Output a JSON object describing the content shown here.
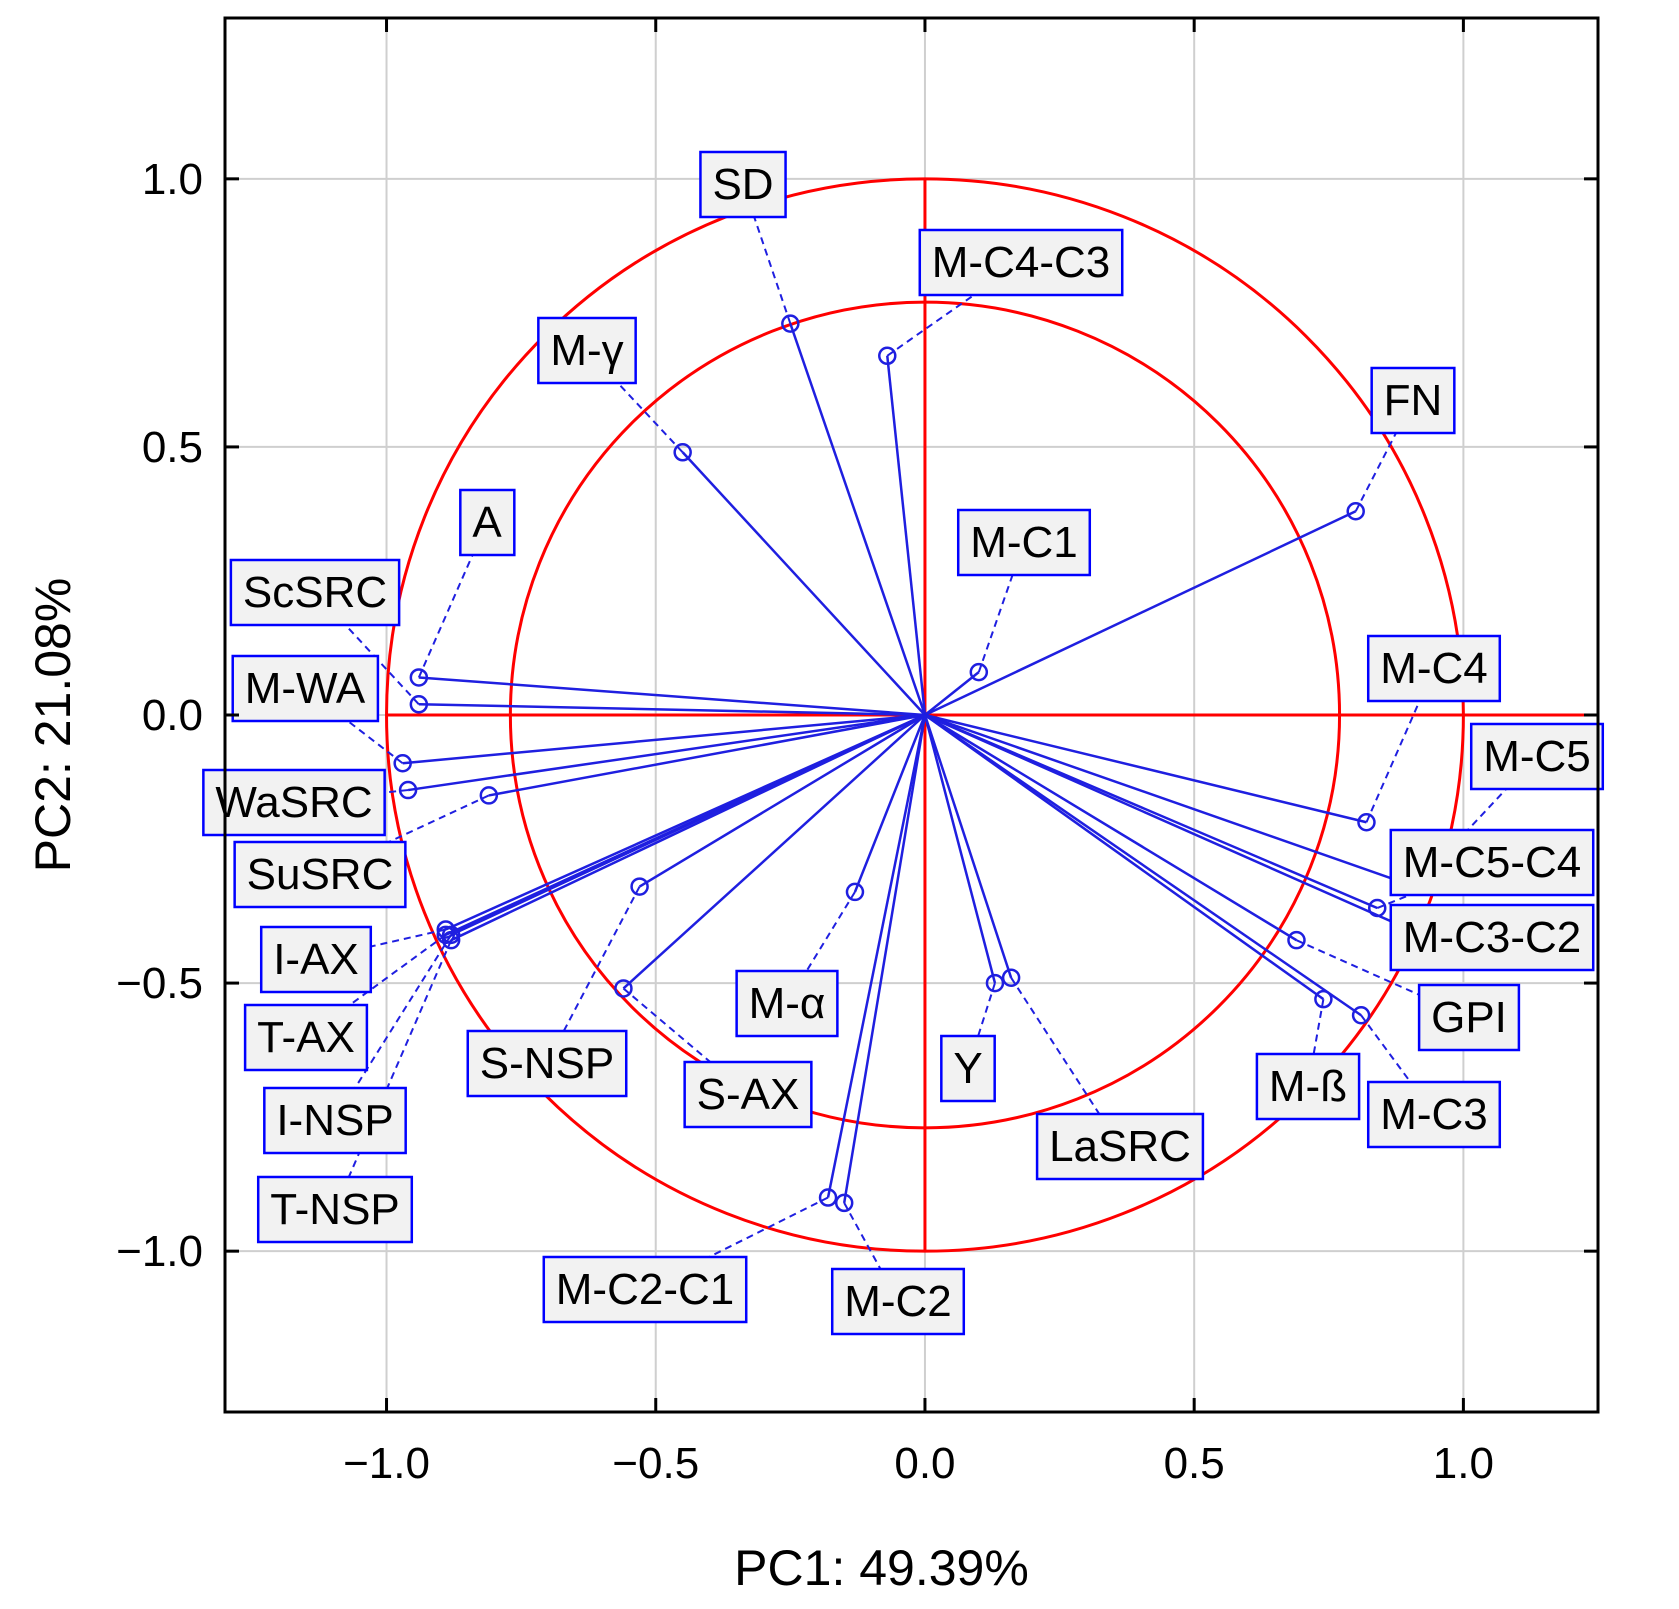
{
  "colors": {
    "vector": "#1f1fe0",
    "circle": "#ff0000",
    "grid": "#cfcfcf",
    "frame": "#000000",
    "label_fill": "#f2f2f2",
    "label_border": "#0000ff"
  },
  "chart_data": {
    "type": "scatter",
    "subtype": "pca-correlation-circle",
    "xlabel": "PC1: 49.39%",
    "ylabel": "PC2: 21.08%",
    "xlim": [
      -1.3,
      1.25
    ],
    "ylim": [
      -1.3,
      1.3
    ],
    "x_ticks": [
      -1.0,
      -0.5,
      0.0,
      0.5,
      1.0
    ],
    "x_tick_labels": [
      "−1.0",
      "−0.5",
      "0.0",
      "0.5",
      "1.0"
    ],
    "y_ticks": [
      -1.0,
      -0.5,
      0.0,
      0.5,
      1.0
    ],
    "y_tick_labels": [
      "−1.0",
      "−0.5",
      "0.0",
      "0.5",
      "1.0"
    ],
    "grid": true,
    "circles": [
      {
        "name": "unit circle",
        "radius": 1.0
      },
      {
        "name": "inner circle",
        "radius": 0.77
      }
    ],
    "variables": [
      {
        "name": "SD",
        "x": -0.25,
        "y": 0.73
      },
      {
        "name": "M-C4-C3",
        "x": -0.07,
        "y": 0.67
      },
      {
        "name": "M-γ",
        "x": -0.45,
        "y": 0.49
      },
      {
        "name": "FN",
        "x": 0.8,
        "y": 0.38
      },
      {
        "name": "A",
        "x": -0.94,
        "y": 0.07
      },
      {
        "name": "ScSRC",
        "x": -0.94,
        "y": 0.02
      },
      {
        "name": "M-C1",
        "x": 0.1,
        "y": 0.08
      },
      {
        "name": "M-WA",
        "x": -0.97,
        "y": -0.09
      },
      {
        "name": "WaSRC",
        "x": -0.96,
        "y": -0.14
      },
      {
        "name": "SuSRC",
        "x": -0.81,
        "y": -0.15
      },
      {
        "name": "M-C4",
        "x": 0.82,
        "y": -0.2
      },
      {
        "name": "M-C5",
        "x": 0.91,
        "y": -0.32
      },
      {
        "name": "M-C5-C4",
        "x": 0.84,
        "y": -0.36
      },
      {
        "name": "M-C3-C2",
        "x": 0.9,
        "y": -0.4
      },
      {
        "name": "GPI",
        "x": 0.69,
        "y": -0.42
      },
      {
        "name": "M-ß",
        "x": 0.74,
        "y": -0.53
      },
      {
        "name": "M-C3",
        "x": 0.81,
        "y": -0.56
      },
      {
        "name": "I-AX",
        "x": -0.89,
        "y": -0.4
      },
      {
        "name": "T-AX",
        "x": -0.89,
        "y": -0.41
      },
      {
        "name": "I-NSP",
        "x": -0.88,
        "y": -0.41
      },
      {
        "name": "T-NSP",
        "x": -0.88,
        "y": -0.42
      },
      {
        "name": "S-NSP",
        "x": -0.53,
        "y": -0.32
      },
      {
        "name": "S-AX",
        "x": -0.56,
        "y": -0.51
      },
      {
        "name": "M-α",
        "x": -0.13,
        "y": -0.33
      },
      {
        "name": "Y",
        "x": 0.13,
        "y": -0.5
      },
      {
        "name": "LaSRC",
        "x": 0.16,
        "y": -0.49
      },
      {
        "name": "M-C2-C1",
        "x": -0.18,
        "y": -0.9
      },
      {
        "name": "M-C2",
        "x": -0.15,
        "y": -0.91
      }
    ]
  }
}
